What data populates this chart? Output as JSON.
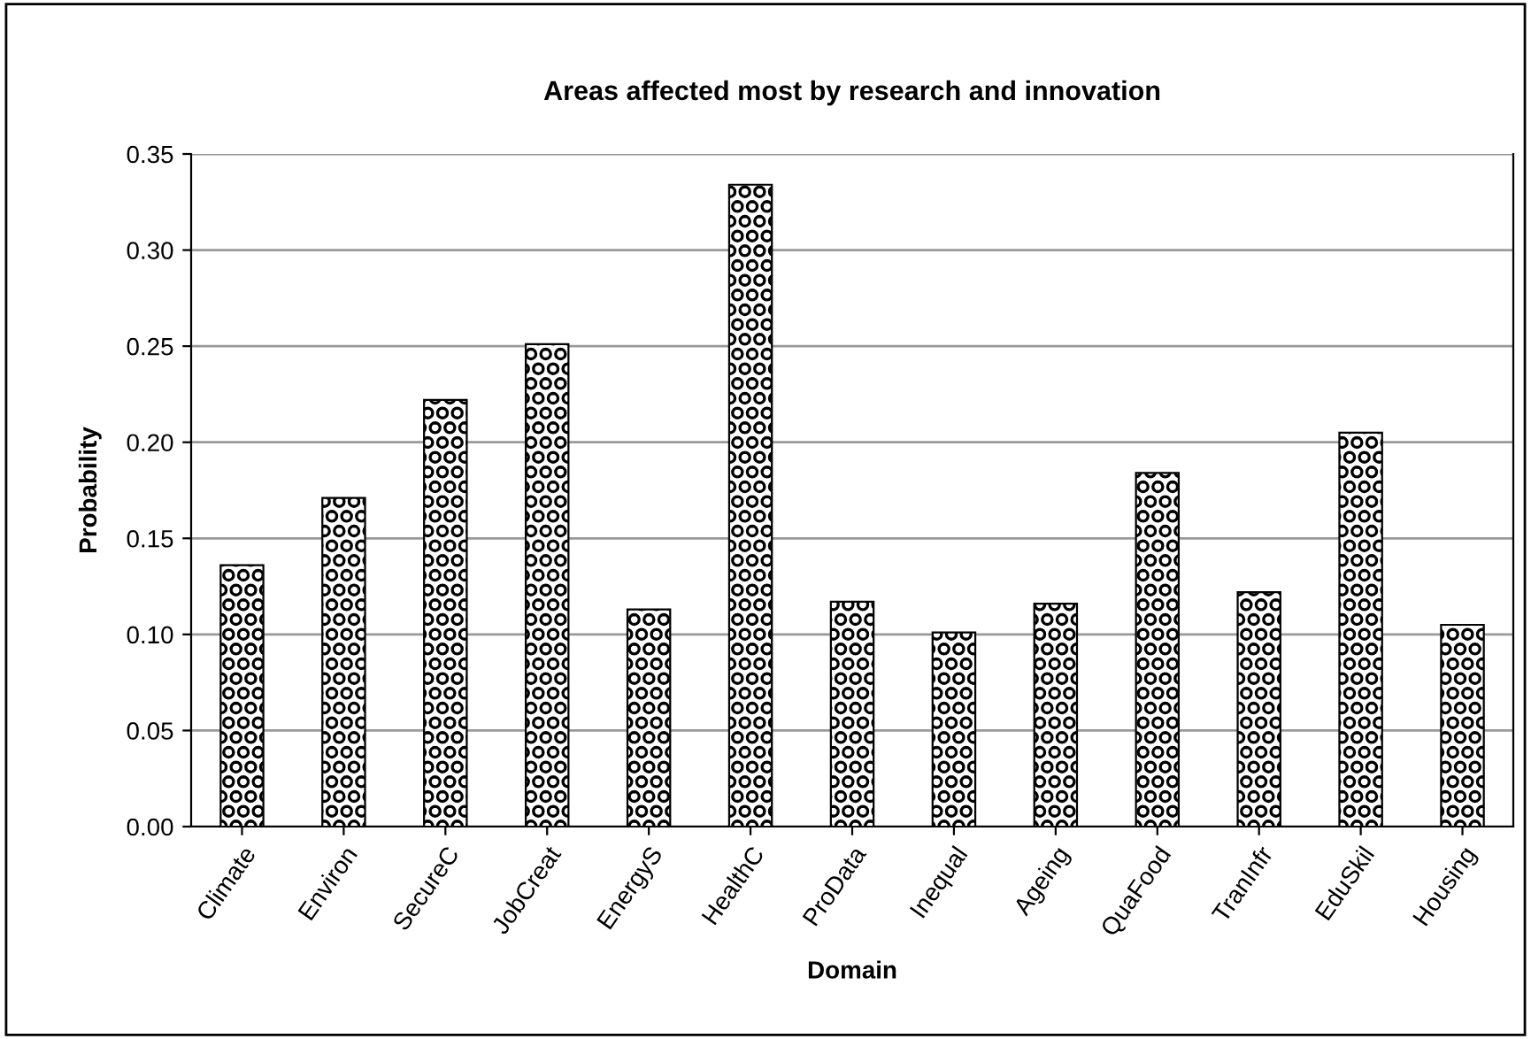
{
  "chart_data": {
    "type": "bar",
    "title": "Areas affected most by research and innovation",
    "xlabel": "Domain",
    "ylabel": "Probability",
    "categories": [
      "Climate",
      "Environ",
      "SecureC",
      "JobCreat",
      "EnergyS",
      "HealthC",
      "ProData",
      "Inequal",
      "Ageing",
      "QuaFood",
      "TranInfr",
      "EduSkil",
      "Housing"
    ],
    "values": [
      0.136,
      0.171,
      0.222,
      0.251,
      0.113,
      0.334,
      0.117,
      0.101,
      0.116,
      0.184,
      0.122,
      0.205,
      0.105
    ],
    "color": "#000000",
    "ylim": [
      0,
      0.35
    ],
    "yticks": [
      {
        "value": 0,
        "label": "0.00"
      },
      {
        "value": 0.05,
        "label": "0.05"
      },
      {
        "value": 0.1,
        "label": "0.10"
      },
      {
        "value": 0.15,
        "label": "0.15"
      },
      {
        "value": 0.2,
        "label": "0.20"
      },
      {
        "value": 0.25,
        "label": "0.25"
      },
      {
        "value": 0.3,
        "label": "0.30"
      },
      {
        "value": 0.35,
        "label": "0.35"
      }
    ],
    "grid": "y"
  }
}
